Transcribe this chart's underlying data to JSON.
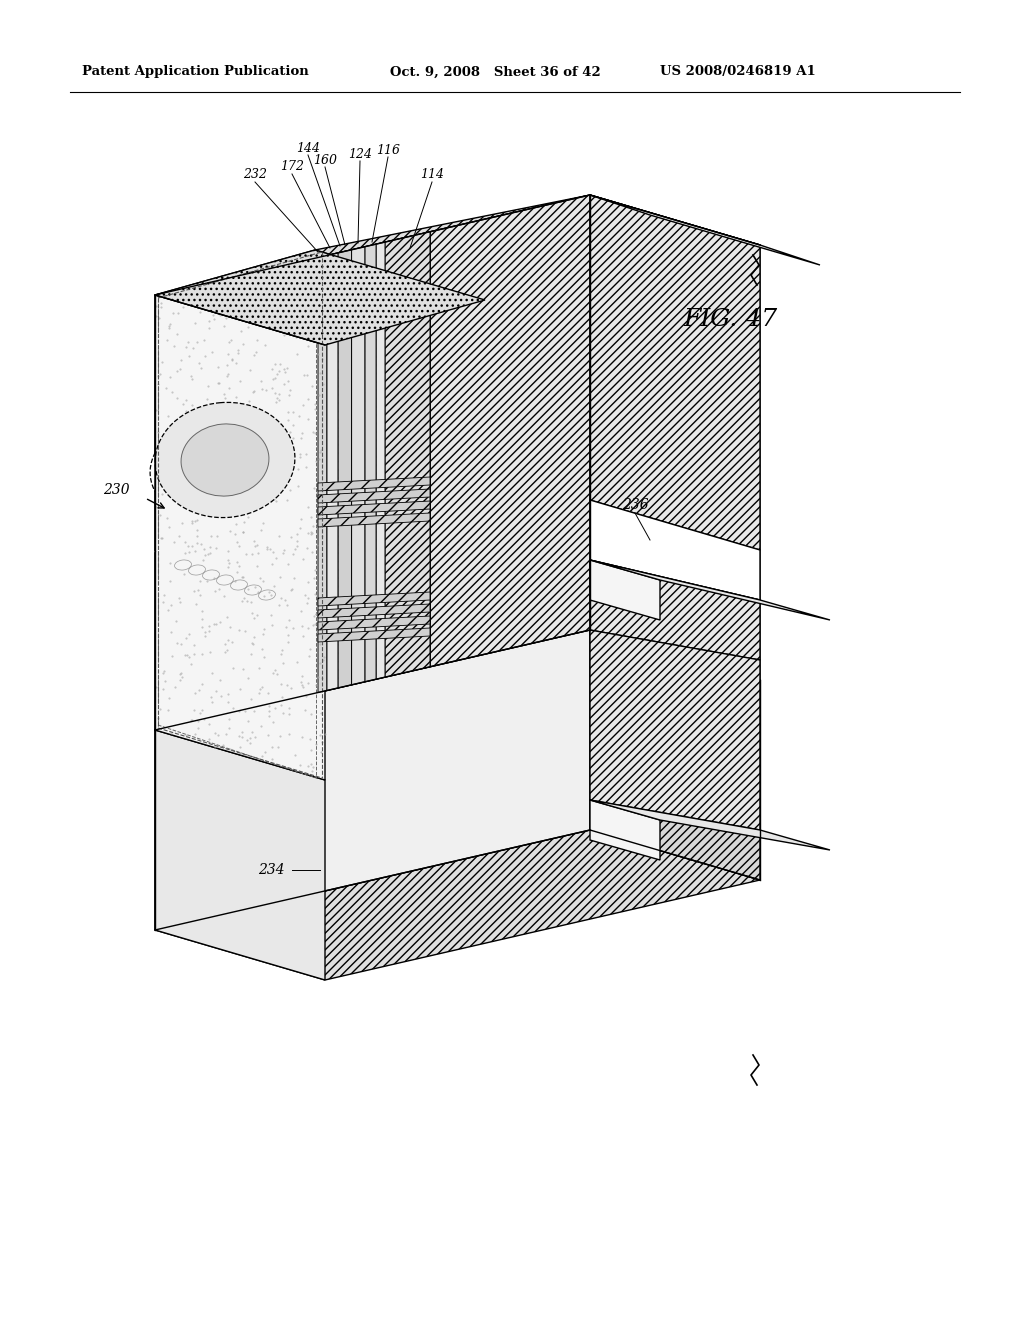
{
  "background_color": "#ffffff",
  "header_left": "Patent Application Publication",
  "header_center": "Oct. 9, 2008   Sheet 36 of 42",
  "header_right": "US 2008/0246819 A1",
  "fig_label": "FIG. 47",
  "line_color": "#000000",
  "line_width": 1.0
}
